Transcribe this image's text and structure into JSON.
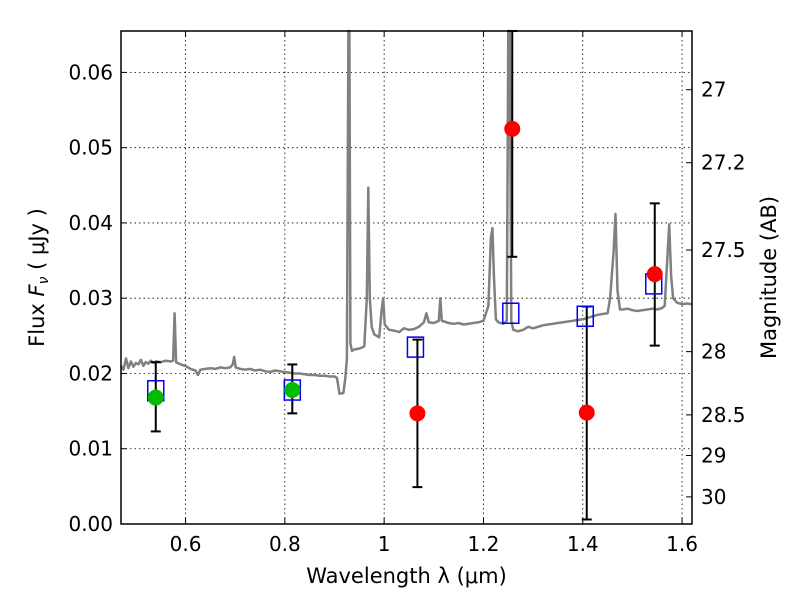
{
  "chart_data": {
    "type": "scatter",
    "xlabel": "Wavelength  λ (μm)",
    "ylabel_left": {
      "prefix": "Flux ",
      "symbol": "F",
      "sub": "ν",
      "unit": "  ( μJy )"
    },
    "ylabel_right": "Magnitude (AB)",
    "xlim": [
      0.47,
      1.62
    ],
    "ylim": [
      0.0,
      0.0655
    ],
    "grid": true,
    "x_ticks": [
      0.6,
      0.8,
      1.0,
      1.2,
      1.4,
      1.6
    ],
    "x_tick_labels": [
      "0.6",
      "0.8",
      "1",
      "1.2",
      "1.4",
      "1.6"
    ],
    "y_ticks": [
      0.0,
      0.01,
      0.02,
      0.03,
      0.04,
      0.05,
      0.06
    ],
    "y_tick_labels": [
      "0.00",
      "0.01",
      "0.02",
      "0.03",
      "0.04",
      "0.05",
      "0.06"
    ],
    "right_ticks": [
      {
        "label": "27",
        "flux": 0.0577
      },
      {
        "label": "27.2",
        "flux": 0.048
      },
      {
        "label": "27.5",
        "flux": 0.0364
      },
      {
        "label": "28",
        "flux": 0.0229
      },
      {
        "label": "28.5",
        "flux": 0.0145
      },
      {
        "label": "29",
        "flux": 0.0091
      },
      {
        "label": "30",
        "flux": 0.0036
      }
    ],
    "series": [
      {
        "name": "observed-detections",
        "marker": "circle",
        "color": "#00bb00",
        "points": [
          {
            "x": 0.54,
            "y": 0.0168,
            "yerr_lo": 0.0123,
            "yerr_hi": 0.0215
          },
          {
            "x": 0.815,
            "y": 0.0178,
            "yerr_lo": 0.0147,
            "yerr_hi": 0.0212
          }
        ]
      },
      {
        "name": "observed-nondetections",
        "marker": "circle",
        "color": "#ff0000",
        "points": [
          {
            "x": 1.067,
            "y": 0.0147,
            "yerr_lo": 0.0049,
            "yerr_hi": 0.0245
          },
          {
            "x": 1.258,
            "y": 0.0525,
            "yerr_lo": 0.0355,
            "yerr_hi": 0.0655
          },
          {
            "x": 1.408,
            "y": 0.0148,
            "yerr_lo": 0.0006,
            "yerr_hi": 0.0289
          },
          {
            "x": 1.545,
            "y": 0.0332,
            "yerr_lo": 0.0237,
            "yerr_hi": 0.0426
          }
        ]
      },
      {
        "name": "model-synthetic-photometry",
        "marker": "square",
        "color": "#0000ff",
        "points": [
          {
            "x": 0.54,
            "y": 0.0177
          },
          {
            "x": 0.815,
            "y": 0.0178
          },
          {
            "x": 1.063,
            "y": 0.0235
          },
          {
            "x": 1.255,
            "y": 0.028
          },
          {
            "x": 1.405,
            "y": 0.0276
          },
          {
            "x": 1.543,
            "y": 0.0319
          }
        ]
      }
    ],
    "spectrum": {
      "name": "model-spectrum",
      "color": "#808080",
      "points": [
        [
          0.47,
          0.021
        ],
        [
          0.475,
          0.0205
        ],
        [
          0.48,
          0.022
        ],
        [
          0.485,
          0.0207
        ],
        [
          0.49,
          0.0216
        ],
        [
          0.495,
          0.0209
        ],
        [
          0.5,
          0.0214
        ],
        [
          0.505,
          0.0212
        ],
        [
          0.51,
          0.0218
        ],
        [
          0.515,
          0.021
        ],
        [
          0.52,
          0.0215
        ],
        [
          0.525,
          0.0213
        ],
        [
          0.53,
          0.0217
        ],
        [
          0.535,
          0.0214
        ],
        [
          0.54,
          0.0216
        ],
        [
          0.55,
          0.0215
        ],
        [
          0.56,
          0.0217
        ],
        [
          0.57,
          0.0216
        ],
        [
          0.575,
          0.0217
        ],
        [
          0.578,
          0.028
        ],
        [
          0.581,
          0.0215
        ],
        [
          0.59,
          0.0212
        ],
        [
          0.6,
          0.021
        ],
        [
          0.61,
          0.0206
        ],
        [
          0.62,
          0.0204
        ],
        [
          0.625,
          0.0198
        ],
        [
          0.63,
          0.0205
        ],
        [
          0.64,
          0.0206
        ],
        [
          0.65,
          0.0207
        ],
        [
          0.66,
          0.0206
        ],
        [
          0.67,
          0.0208
        ],
        [
          0.68,
          0.0207
        ],
        [
          0.69,
          0.0208
        ],
        [
          0.695,
          0.0212
        ],
        [
          0.698,
          0.0222
        ],
        [
          0.701,
          0.0208
        ],
        [
          0.71,
          0.0206
        ],
        [
          0.72,
          0.0205
        ],
        [
          0.73,
          0.0206
        ],
        [
          0.74,
          0.0204
        ],
        [
          0.75,
          0.0205
        ],
        [
          0.76,
          0.0203
        ],
        [
          0.77,
          0.0202
        ],
        [
          0.78,
          0.0204
        ],
        [
          0.79,
          0.0203
        ],
        [
          0.8,
          0.0202
        ],
        [
          0.81,
          0.0201
        ],
        [
          0.82,
          0.02
        ],
        [
          0.83,
          0.02
        ],
        [
          0.84,
          0.0199
        ],
        [
          0.85,
          0.0198
        ],
        [
          0.86,
          0.0198
        ],
        [
          0.87,
          0.0197
        ],
        [
          0.88,
          0.0197
        ],
        [
          0.89,
          0.0196
        ],
        [
          0.9,
          0.0196
        ],
        [
          0.905,
          0.0194
        ],
        [
          0.91,
          0.0173
        ],
        [
          0.918,
          0.0174
        ],
        [
          0.922,
          0.0195
        ],
        [
          0.925,
          0.022
        ],
        [
          0.928,
          0.066
        ],
        [
          0.93,
          0.066
        ],
        [
          0.932,
          0.024
        ],
        [
          0.935,
          0.023
        ],
        [
          0.94,
          0.0232
        ],
        [
          0.95,
          0.0233
        ],
        [
          0.96,
          0.0236
        ],
        [
          0.965,
          0.03
        ],
        [
          0.968,
          0.0447
        ],
        [
          0.971,
          0.03
        ],
        [
          0.975,
          0.0262
        ],
        [
          0.98,
          0.0252
        ],
        [
          0.99,
          0.0248
        ],
        [
          0.995,
          0.0285
        ],
        [
          0.998,
          0.03
        ],
        [
          1.001,
          0.0265
        ],
        [
          1.01,
          0.0258
        ],
        [
          1.02,
          0.0257
        ],
        [
          1.03,
          0.0255
        ],
        [
          1.04,
          0.026
        ],
        [
          1.05,
          0.0258
        ],
        [
          1.06,
          0.0259
        ],
        [
          1.07,
          0.0262
        ],
        [
          1.08,
          0.0268
        ],
        [
          1.085,
          0.028
        ],
        [
          1.09,
          0.0268
        ],
        [
          1.1,
          0.0267
        ],
        [
          1.11,
          0.027
        ],
        [
          1.113,
          0.03
        ],
        [
          1.116,
          0.027
        ],
        [
          1.13,
          0.0267
        ],
        [
          1.14,
          0.0266
        ],
        [
          1.15,
          0.0267
        ],
        [
          1.16,
          0.0265
        ],
        [
          1.17,
          0.0266
        ],
        [
          1.18,
          0.0267
        ],
        [
          1.19,
          0.0268
        ],
        [
          1.2,
          0.027
        ],
        [
          1.21,
          0.029
        ],
        [
          1.215,
          0.038
        ],
        [
          1.218,
          0.0393
        ],
        [
          1.221,
          0.033
        ],
        [
          1.225,
          0.0272
        ],
        [
          1.23,
          0.0268
        ],
        [
          1.24,
          0.0266
        ],
        [
          1.247,
          0.027
        ],
        [
          1.25,
          0.066
        ],
        [
          1.253,
          0.066
        ],
        [
          1.256,
          0.027
        ],
        [
          1.26,
          0.0258
        ],
        [
          1.27,
          0.0256
        ],
        [
          1.28,
          0.0258
        ],
        [
          1.29,
          0.0262
        ],
        [
          1.3,
          0.026
        ],
        [
          1.31,
          0.0262
        ],
        [
          1.32,
          0.0264
        ],
        [
          1.33,
          0.0265
        ],
        [
          1.34,
          0.0266
        ],
        [
          1.35,
          0.0267
        ],
        [
          1.36,
          0.0268
        ],
        [
          1.37,
          0.0269
        ],
        [
          1.38,
          0.027
        ],
        [
          1.39,
          0.0271
        ],
        [
          1.4,
          0.0272
        ],
        [
          1.41,
          0.0274
        ],
        [
          1.42,
          0.0276
        ],
        [
          1.43,
          0.0278
        ],
        [
          1.44,
          0.0279
        ],
        [
          1.45,
          0.028
        ],
        [
          1.455,
          0.03
        ],
        [
          1.462,
          0.036
        ],
        [
          1.466,
          0.0412
        ],
        [
          1.47,
          0.031
        ],
        [
          1.475,
          0.0285
        ],
        [
          1.48,
          0.0285
        ],
        [
          1.49,
          0.0286
        ],
        [
          1.5,
          0.0284
        ],
        [
          1.51,
          0.0283
        ],
        [
          1.52,
          0.0284
        ],
        [
          1.53,
          0.0285
        ],
        [
          1.54,
          0.0286
        ],
        [
          1.55,
          0.0285
        ],
        [
          1.56,
          0.0287
        ],
        [
          1.565,
          0.029
        ],
        [
          1.57,
          0.035
        ],
        [
          1.574,
          0.0398
        ],
        [
          1.578,
          0.033
        ],
        [
          1.582,
          0.03
        ],
        [
          1.59,
          0.0294
        ],
        [
          1.6,
          0.0292
        ],
        [
          1.61,
          0.0293
        ],
        [
          1.62,
          0.0292
        ]
      ]
    }
  }
}
